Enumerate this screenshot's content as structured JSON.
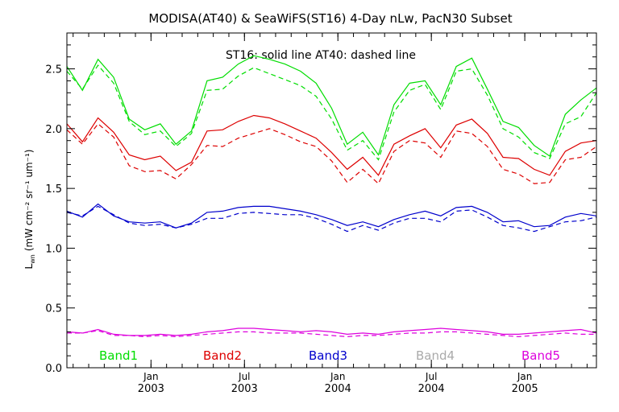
{
  "chart_data": {
    "type": "line",
    "title": "MODISA(AT40) & SeaWiFS(ST16) 4-Day nLw, PacN30 Subset",
    "annotation": "ST16: solid line   AT40: dashed line",
    "ylabel": "L",
    "ylabel_sub": "wn",
    "ylabel_units": "(mW cm⁻² sr⁻¹ um⁻¹)",
    "ylim": [
      0.0,
      2.8
    ],
    "yticks": [
      "0.0",
      "0.5",
      "1.0",
      "1.5",
      "2.0",
      "2.5"
    ],
    "xlim": [
      0,
      34
    ],
    "xticks": [
      {
        "pos": 5.4,
        "month": "Jan",
        "year": "2003"
      },
      {
        "pos": 11.4,
        "month": "Jul",
        "year": "2003"
      },
      {
        "pos": 17.4,
        "month": "Jan",
        "year": "2004"
      },
      {
        "pos": 23.4,
        "month": "Jul",
        "year": "2004"
      },
      {
        "pos": 29.4,
        "month": "Jan",
        "year": "2005"
      }
    ],
    "x": [
      0,
      1,
      2,
      3,
      4,
      5,
      6,
      7,
      8,
      9,
      10,
      11,
      12,
      13,
      14,
      15,
      16,
      17,
      18,
      19,
      20,
      21,
      22,
      23,
      24,
      25,
      26,
      27,
      28,
      29,
      30,
      31,
      32,
      33,
      34
    ],
    "series": [
      {
        "name": "Band1",
        "color": "#00dd00",
        "solid": [
          2.52,
          2.32,
          2.58,
          2.43,
          2.08,
          1.99,
          2.04,
          1.87,
          1.98,
          2.4,
          2.43,
          2.54,
          2.61,
          2.58,
          2.54,
          2.48,
          2.38,
          2.17,
          1.87,
          1.97,
          1.78,
          2.2,
          2.38,
          2.4,
          2.2,
          2.52,
          2.59,
          2.33,
          2.06,
          2.01,
          1.86,
          1.77,
          2.12,
          2.24,
          2.34
        ],
        "dashed": [
          2.48,
          2.33,
          2.53,
          2.38,
          2.06,
          1.95,
          1.98,
          1.85,
          1.96,
          2.32,
          2.33,
          2.44,
          2.51,
          2.46,
          2.41,
          2.36,
          2.27,
          2.08,
          1.82,
          1.9,
          1.74,
          2.14,
          2.32,
          2.37,
          2.16,
          2.48,
          2.5,
          2.28,
          2.0,
          1.93,
          1.8,
          1.75,
          2.04,
          2.1,
          2.3
        ]
      },
      {
        "name": "Band2",
        "color": "#dd0000",
        "solid": [
          2.04,
          1.89,
          2.09,
          1.97,
          1.78,
          1.74,
          1.77,
          1.65,
          1.72,
          1.98,
          1.99,
          2.06,
          2.11,
          2.09,
          2.04,
          1.98,
          1.92,
          1.8,
          1.66,
          1.76,
          1.61,
          1.87,
          1.94,
          2.0,
          1.84,
          2.03,
          2.08,
          1.96,
          1.76,
          1.75,
          1.66,
          1.61,
          1.81,
          1.88,
          1.9
        ],
        "dashed": [
          1.99,
          1.87,
          2.04,
          1.93,
          1.69,
          1.64,
          1.65,
          1.58,
          1.7,
          1.86,
          1.85,
          1.92,
          1.96,
          2.0,
          1.95,
          1.89,
          1.85,
          1.73,
          1.55,
          1.66,
          1.54,
          1.81,
          1.9,
          1.88,
          1.76,
          1.98,
          1.96,
          1.85,
          1.66,
          1.62,
          1.54,
          1.55,
          1.74,
          1.76,
          1.85
        ]
      },
      {
        "name": "Band3",
        "color": "#0000cc",
        "solid": [
          1.31,
          1.26,
          1.37,
          1.27,
          1.22,
          1.21,
          1.22,
          1.17,
          1.21,
          1.3,
          1.31,
          1.34,
          1.35,
          1.35,
          1.33,
          1.31,
          1.28,
          1.24,
          1.19,
          1.22,
          1.18,
          1.24,
          1.28,
          1.31,
          1.27,
          1.34,
          1.35,
          1.3,
          1.22,
          1.23,
          1.18,
          1.19,
          1.26,
          1.29,
          1.27
        ],
        "dashed": [
          1.3,
          1.27,
          1.35,
          1.28,
          1.21,
          1.19,
          1.2,
          1.17,
          1.2,
          1.25,
          1.25,
          1.29,
          1.3,
          1.29,
          1.28,
          1.28,
          1.25,
          1.2,
          1.14,
          1.19,
          1.15,
          1.21,
          1.25,
          1.25,
          1.22,
          1.31,
          1.32,
          1.26,
          1.19,
          1.17,
          1.14,
          1.18,
          1.22,
          1.23,
          1.26
        ]
      },
      {
        "name": "Band4",
        "color": "#aaaaaa",
        "solid": [],
        "dashed": []
      },
      {
        "name": "Band5",
        "color": "#dd00dd",
        "solid": [
          0.3,
          0.29,
          0.32,
          0.28,
          0.27,
          0.27,
          0.28,
          0.27,
          0.28,
          0.3,
          0.31,
          0.33,
          0.33,
          0.32,
          0.31,
          0.3,
          0.31,
          0.3,
          0.28,
          0.29,
          0.28,
          0.3,
          0.31,
          0.32,
          0.33,
          0.32,
          0.31,
          0.3,
          0.28,
          0.28,
          0.29,
          0.3,
          0.31,
          0.32,
          0.29
        ],
        "dashed": [
          0.29,
          0.29,
          0.31,
          0.27,
          0.27,
          0.26,
          0.27,
          0.26,
          0.27,
          0.28,
          0.29,
          0.3,
          0.3,
          0.29,
          0.29,
          0.29,
          0.28,
          0.27,
          0.26,
          0.27,
          0.27,
          0.28,
          0.29,
          0.29,
          0.3,
          0.3,
          0.29,
          0.28,
          0.27,
          0.26,
          0.27,
          0.28,
          0.29,
          0.28,
          0.28
        ]
      }
    ]
  }
}
